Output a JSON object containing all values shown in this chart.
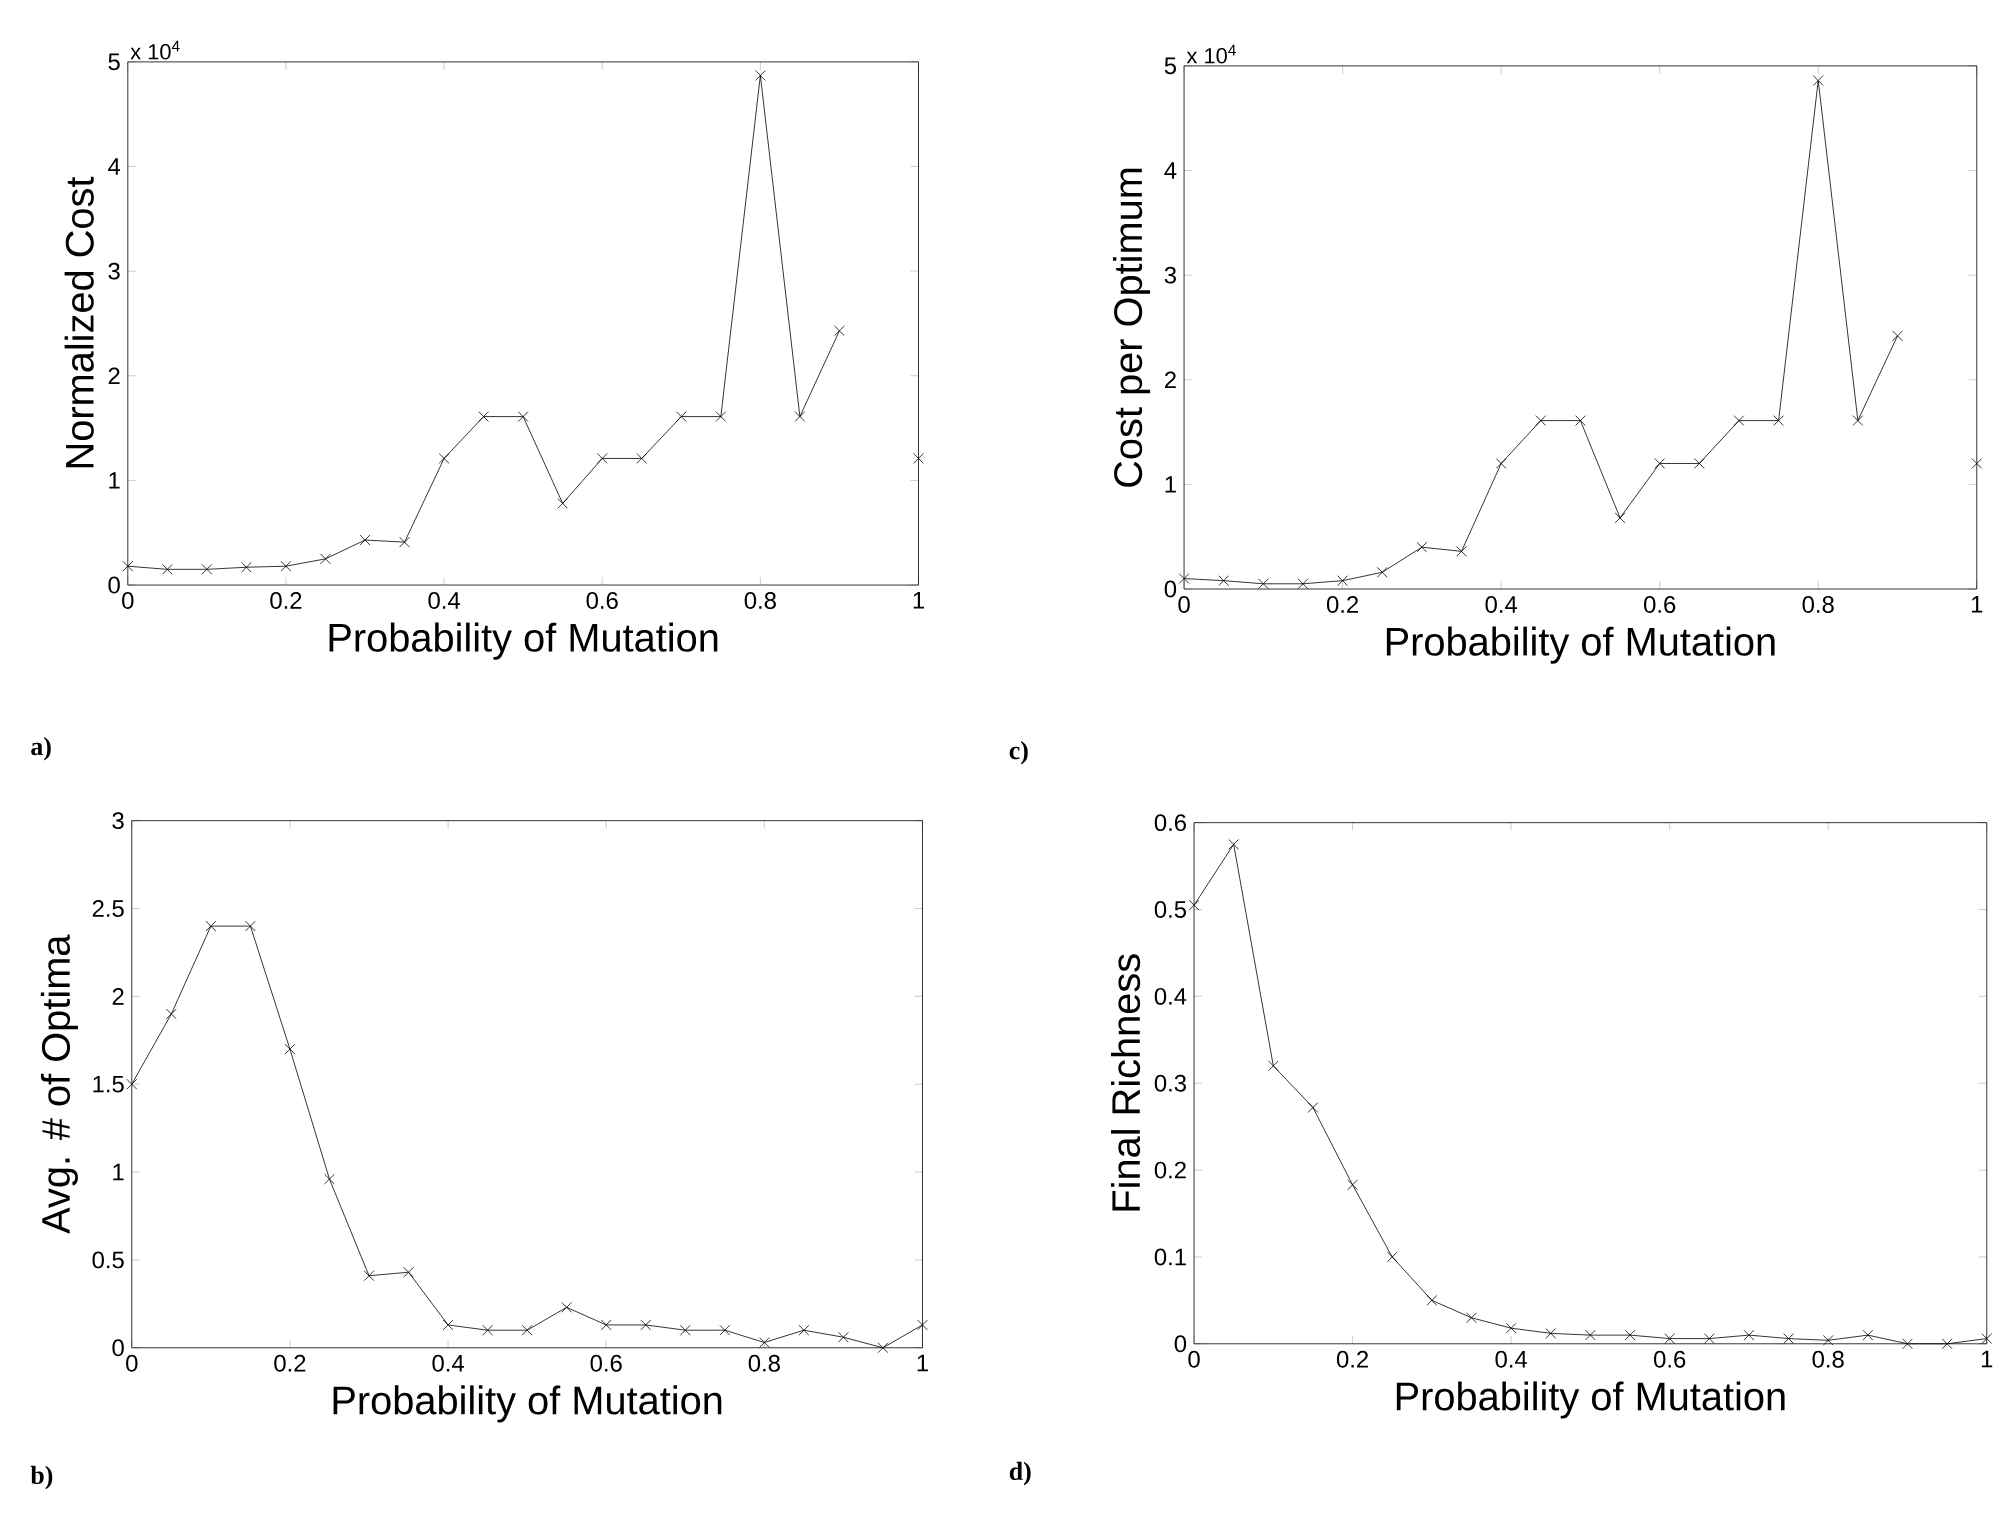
{
  "chart_data": [
    {
      "type": "line",
      "title": "a)",
      "xlabel": "Probability of Mutation",
      "ylabel": "Normalized Cost",
      "annotations": [
        "x 10$^{4}$"
      ],
      "marker": "cross",
      "line_style": "solid",
      "color": "#000000",
      "x": [
        0,
        0.05,
        0.1,
        0.15,
        0.2,
        0.25,
        0.3,
        0.35,
        0.4,
        0.45,
        0.5,
        0.55,
        0.6,
        0.65,
        0.7,
        0.75,
        0.8,
        0.85,
        0.9,
        0.95,
        1
      ],
      "values": [
        0.18,
        0.15,
        0.15,
        0.17,
        0.18,
        0.25,
        0.43,
        0.41,
        1.21,
        1.61,
        1.61,
        0.78,
        1.21,
        1.21,
        1.61,
        1.61,
        4.87,
        1.61,
        2.43,
        null,
        1.21
      ],
      "xlim": [
        0,
        1
      ],
      "xticks": [
        0,
        0.2,
        0.4,
        0.6,
        0.8,
        1
      ],
      "ylim": [
        0,
        5
      ],
      "yticks": [
        0,
        1,
        2,
        3,
        4,
        5
      ]
    },
    {
      "type": "line",
      "title": "c)",
      "xlabel": "Probability of Mutation",
      "ylabel": "Cost per Optimum",
      "annotations": [
        "x 10$^{4}$"
      ],
      "marker": "cross",
      "line_style": "solid",
      "color": "#000000",
      "x": [
        0,
        0.05,
        0.1,
        0.15,
        0.2,
        0.25,
        0.3,
        0.35,
        0.4,
        0.45,
        0.5,
        0.55,
        0.6,
        0.65,
        0.7,
        0.75,
        0.8,
        0.85,
        0.9,
        0.95,
        1
      ],
      "values": [
        0.1,
        0.08,
        0.05,
        0.05,
        0.08,
        0.16,
        0.4,
        0.36,
        1.2,
        1.61,
        1.61,
        0.68,
        1.2,
        1.2,
        1.61,
        1.61,
        4.86,
        1.61,
        2.42,
        null,
        1.2
      ],
      "xlim": [
        0,
        1
      ],
      "xticks": [
        0,
        0.2,
        0.4,
        0.6,
        0.8,
        1
      ],
      "ylim": [
        0,
        5
      ],
      "yticks": [
        0,
        1,
        2,
        3,
        4,
        5
      ]
    },
    {
      "type": "line",
      "title": "b)",
      "xlabel": "Probability of Mutation",
      "ylabel": "Avg. # of Optima",
      "marker": "cross",
      "line_style": "solid",
      "color": "#000000",
      "x": [
        0,
        0.05,
        0.1,
        0.15,
        0.2,
        0.25,
        0.3,
        0.35,
        0.4,
        0.45,
        0.5,
        0.55,
        0.6,
        0.65,
        0.7,
        0.75,
        0.8,
        0.85,
        0.9,
        0.95,
        1
      ],
      "values": [
        1.5,
        1.9,
        2.4,
        2.4,
        1.7,
        0.96,
        0.41,
        0.43,
        0.13,
        0.1,
        0.1,
        0.23,
        0.13,
        0.13,
        0.1,
        0.1,
        0.03,
        0.1,
        0.06,
        0,
        0.13
      ],
      "xlim": [
        0,
        1
      ],
      "xticks": [
        0,
        0.2,
        0.4,
        0.6,
        0.8,
        1
      ],
      "ylim": [
        0,
        3
      ],
      "yticks": [
        0,
        0.5,
        1,
        1.5,
        2,
        2.5,
        3
      ]
    },
    {
      "type": "line",
      "title": "d)",
      "xlabel": "Probability of Mutation",
      "ylabel": "Final Richness",
      "marker": "cross",
      "line_style": "solid",
      "color": "#000000",
      "x": [
        0,
        0.05,
        0.1,
        0.15,
        0.2,
        0.25,
        0.3,
        0.35,
        0.4,
        0.45,
        0.5,
        0.55,
        0.6,
        0.65,
        0.7,
        0.75,
        0.8,
        0.85,
        0.9,
        0.95,
        1
      ],
      "values": [
        0.505,
        0.575,
        0.32,
        0.272,
        0.183,
        0.1,
        0.05,
        0.03,
        0.018,
        0.012,
        0.01,
        0.01,
        0.006,
        0.006,
        0.01,
        0.006,
        0.004,
        0.01,
        0,
        0,
        0.006
      ],
      "xlim": [
        0,
        1
      ],
      "xticks": [
        0,
        0.2,
        0.4,
        0.6,
        0.8,
        1
      ],
      "ylim": [
        0,
        0.6
      ],
      "yticks": [
        0,
        0.1,
        0.2,
        0.3,
        0.4,
        0.5,
        0.6
      ]
    }
  ]
}
